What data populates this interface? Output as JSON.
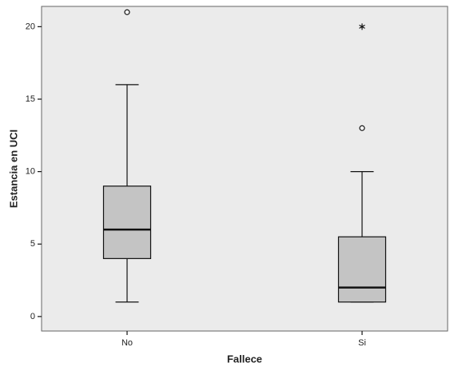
{
  "chart_data": {
    "type": "box",
    "x_label": "Fallece",
    "y_label": "Estancia en UCI",
    "categories": [
      "No",
      "Si"
    ],
    "boxes": [
      {
        "min": 1,
        "q1": 4,
        "median": 6,
        "q3": 9,
        "max": 16,
        "outliers": [
          21
        ],
        "extremes": []
      },
      {
        "min": 1,
        "q1": 1,
        "median": 2,
        "q3": 5.5,
        "max": 10,
        "outliers": [
          13
        ],
        "extremes": [
          20
        ]
      }
    ],
    "box_color": "#c4c4c4",
    "ylim": [
      -1,
      21.4
    ],
    "yticks": [
      0,
      5,
      10,
      15,
      20
    ]
  }
}
